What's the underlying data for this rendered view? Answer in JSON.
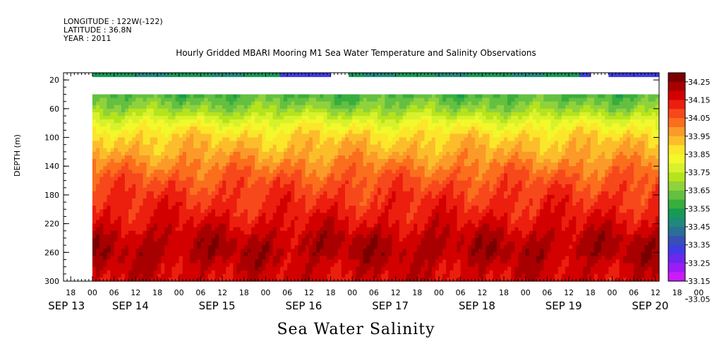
{
  "header": {
    "longitude": "LONGITUDE : 122W(-122)",
    "latitude": "LATITUDE : 36.8N",
    "year": "YEAR : 2011",
    "title": "Hourly Gridded MBARI Mooring M1 Sea Water Temperature and Salinity Observations"
  },
  "chart_data": {
    "type": "heatmap",
    "title": "Hourly Gridded MBARI Mooring M1 Sea Water Temperature and Salinity Observations",
    "xlabel": "Sea Water Salinity",
    "ylabel": "DEPTH (m)",
    "y_ticks": [
      20,
      60,
      100,
      140,
      180,
      220,
      260,
      300
    ],
    "ylim": [
      300,
      10
    ],
    "x_hour_ticks": [
      "18",
      "00",
      "06",
      "12",
      "18",
      "00",
      "06",
      "12",
      "18",
      "00",
      "06",
      "12",
      "18",
      "00",
      "06",
      "12",
      "18",
      "00",
      "06",
      "12",
      "18",
      "00",
      "06",
      "12",
      "18",
      "00",
      "06",
      "12",
      "18",
      "00",
      "06",
      "12"
    ],
    "x_date_labels": [
      "SEP 13",
      "SEP 14",
      "SEP 15",
      "SEP 16",
      "SEP 17",
      "SEP 18",
      "SEP 19",
      "SEP 20"
    ],
    "xlim_hours": [
      -8,
      157
    ],
    "data_start": "SEP 14 00",
    "colorbar": {
      "levels": [
        "34.25",
        "34.15",
        "34.05",
        "33.95",
        "33.85",
        "33.75",
        "33.65",
        "33.55",
        "33.45",
        "33.35",
        "33.25",
        "33.15",
        "33.05"
      ],
      "colors": [
        "#7a0000",
        "#a80000",
        "#d30000",
        "#ec1e0e",
        "#f7481c",
        "#fb6e1c",
        "#fb9a28",
        "#fbbe2a",
        "#fbe62a",
        "#f2f82a",
        "#d7f22c",
        "#b6e41c",
        "#90d23c",
        "#64c040",
        "#38ae3c",
        "#169a54",
        "#1e8a7a",
        "#2a6f96",
        "#3650b4",
        "#3f3ce4",
        "#6a28ec",
        "#9c1cf8",
        "#c81cf8"
      ]
    },
    "depth_profile": [
      {
        "depth": 40,
        "salinity": 33.5
      },
      {
        "depth": 60,
        "salinity": 33.6
      },
      {
        "depth": 80,
        "salinity": 33.75
      },
      {
        "depth": 100,
        "salinity": 33.85
      },
      {
        "depth": 120,
        "salinity": 33.9
      },
      {
        "depth": 140,
        "salinity": 33.97
      },
      {
        "depth": 160,
        "salinity": 34.03
      },
      {
        "depth": 180,
        "salinity": 34.07
      },
      {
        "depth": 200,
        "salinity": 34.1
      },
      {
        "depth": 220,
        "salinity": 34.14
      },
      {
        "depth": 240,
        "salinity": 34.19
      },
      {
        "depth": 260,
        "salinity": 34.21
      },
      {
        "depth": 280,
        "salinity": 34.17
      },
      {
        "depth": 300,
        "salinity": 34.15
      }
    ],
    "surface_gaps_hours": [
      [
        66,
        71
      ],
      [
        138,
        143
      ]
    ],
    "surface_low_salinity_hours": [
      [
        52,
        66
      ],
      [
        135,
        138
      ],
      [
        143,
        157
      ]
    ]
  }
}
